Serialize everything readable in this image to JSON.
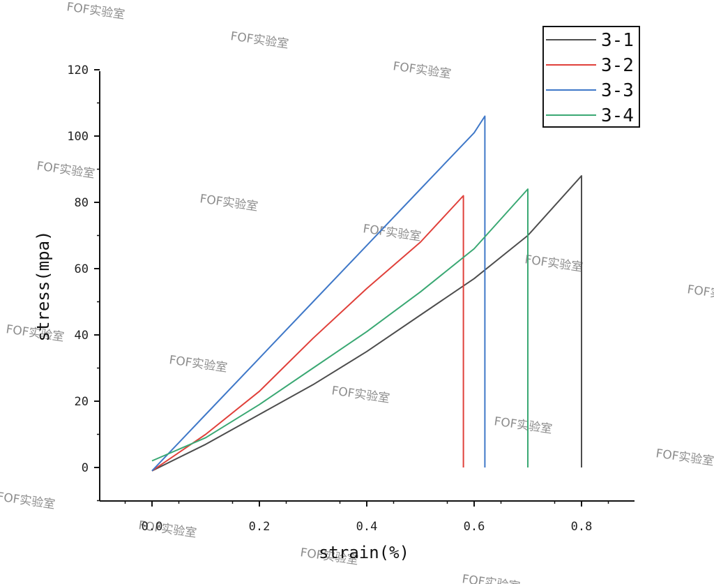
{
  "chart_data": {
    "type": "line",
    "title": "",
    "xlabel": "strain(%)",
    "ylabel": "stress(mpa)",
    "xlim": [
      -0.2,
      0.9
    ],
    "ylim": [
      -10,
      120
    ],
    "x_ticks": [
      0.0,
      0.2,
      0.4,
      0.6,
      0.8
    ],
    "x_tick_labels": [
      "0.0",
      "0.2",
      "0.4",
      "0.6",
      "0.8"
    ],
    "y_ticks": [
      0,
      20,
      40,
      60,
      80,
      100,
      120
    ],
    "y_tick_labels": [
      "0",
      "20",
      "40",
      "60",
      "80",
      "100",
      "120"
    ],
    "grid": false,
    "legend_position": "top-right",
    "series": [
      {
        "name": "3-1",
        "color": "#4d4d4d",
        "x": [
          0.0,
          0.1,
          0.2,
          0.3,
          0.4,
          0.5,
          0.6,
          0.7,
          0.8,
          0.8,
          0.8
        ],
        "y": [
          -1,
          7,
          16,
          25,
          35,
          46,
          57,
          70,
          88,
          88,
          0
        ]
      },
      {
        "name": "3-2",
        "color": "#e0403a",
        "x": [
          0.0,
          0.1,
          0.2,
          0.3,
          0.4,
          0.5,
          0.58,
          0.58,
          0.58
        ],
        "y": [
          -1,
          10,
          23,
          39,
          54,
          68,
          82,
          82,
          0
        ]
      },
      {
        "name": "3-3",
        "color": "#3f78c8",
        "x": [
          0.0,
          0.1,
          0.2,
          0.3,
          0.4,
          0.5,
          0.6,
          0.62,
          0.62,
          0.62
        ],
        "y": [
          -1,
          16,
          33,
          50,
          67,
          84,
          101,
          106,
          106,
          0
        ]
      },
      {
        "name": "3-4",
        "color": "#3aa873",
        "x": [
          0.0,
          0.1,
          0.2,
          0.3,
          0.4,
          0.5,
          0.6,
          0.7,
          0.7,
          0.7
        ],
        "y": [
          2,
          9,
          19,
          30,
          41,
          53,
          66,
          84,
          84,
          0
        ]
      }
    ]
  },
  "watermark_text": "FOF实验室"
}
